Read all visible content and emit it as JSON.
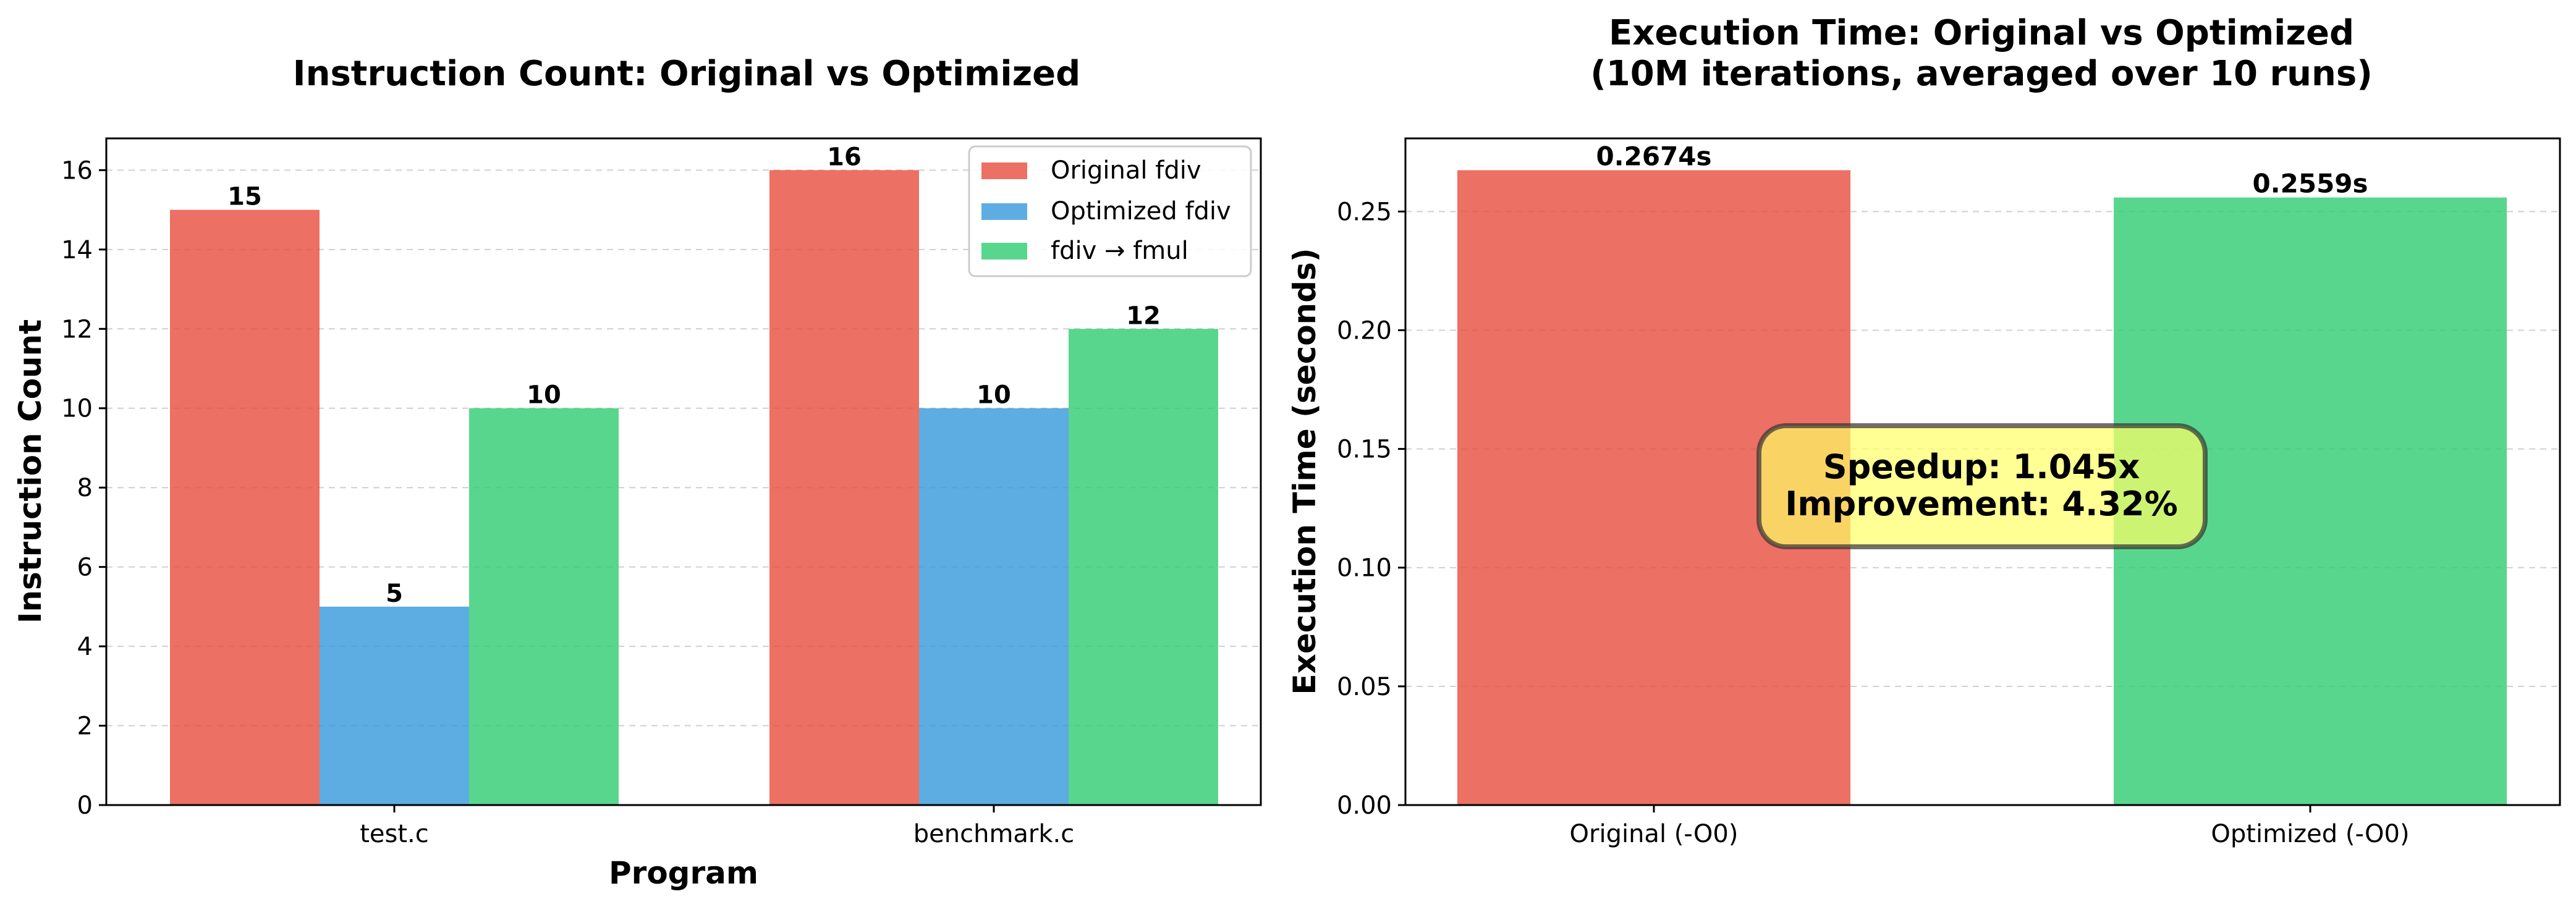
{
  "chart_data": [
    {
      "type": "bar",
      "title": "Instruction Count: Original vs Optimized",
      "xlabel": "Program",
      "ylabel": "Instruction Count",
      "categories": [
        "test.c",
        "benchmark.c"
      ],
      "series": [
        {
          "name": "Original fdiv",
          "color": "#E74C3C",
          "values": [
            15,
            16
          ]
        },
        {
          "name": "Optimized fdiv",
          "color": "#3498DB",
          "values": [
            5,
            10
          ]
        },
        {
          "name": "fdiv → fmul",
          "color": "#2ECC71",
          "values": [
            10,
            12
          ]
        }
      ],
      "ylim": [
        0,
        16.8
      ],
      "yticks": [
        "0",
        "2",
        "4",
        "6",
        "8",
        "10",
        "12",
        "14",
        "16"
      ],
      "ytick_values": [
        0,
        2,
        4,
        6,
        8,
        10,
        12,
        14,
        16
      ],
      "grid": "y-dashed",
      "legend_position": "top-right"
    },
    {
      "type": "bar",
      "title_lines": [
        "Execution Time: Original vs Optimized",
        "(10M iterations, averaged over 10 runs)"
      ],
      "xlabel": "",
      "ylabel": "Execution Time (seconds)",
      "categories": [
        "Original (-O0)",
        "Optimized (-O0)"
      ],
      "values": [
        0.2674,
        0.2559
      ],
      "value_labels": [
        "0.2674s",
        "0.2559s"
      ],
      "colors": [
        "#E74C3C",
        "#2ECC71"
      ],
      "ylim": [
        0,
        0.2808
      ],
      "yticks": [
        "0.00",
        "0.05",
        "0.10",
        "0.15",
        "0.20",
        "0.25"
      ],
      "ytick_values": [
        0,
        0.05,
        0.1,
        0.15,
        0.2,
        0.25
      ],
      "grid": "y-dashed",
      "annotation": {
        "lines": [
          "Speedup: 1.045x",
          "Improvement: 4.32%"
        ],
        "box_color": "#FFFF66",
        "edge_color": "#333333"
      }
    }
  ]
}
